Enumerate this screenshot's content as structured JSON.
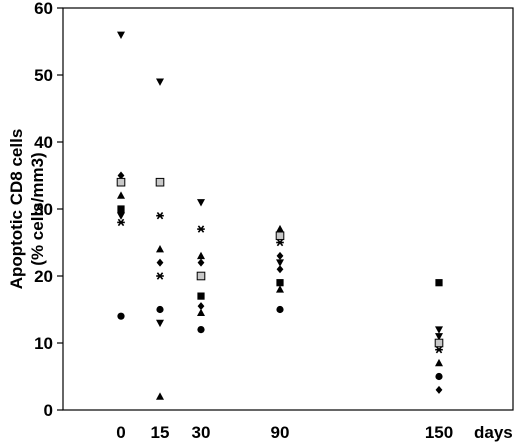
{
  "chart_data": {
    "type": "scatter",
    "title": "",
    "ylabel_line1": "Apoptotic CD8 cells",
    "ylabel_line2": "(% cells/mm3)",
    "xunit": "days",
    "ylim": [
      0,
      60
    ],
    "yticks": [
      0,
      10,
      20,
      30,
      40,
      50,
      60
    ],
    "xticks": [
      0,
      15,
      30,
      90,
      150
    ],
    "grid": false,
    "legend": "none",
    "colors": {
      "marker": "#000000",
      "square_fill": "#c8c8c8"
    },
    "points": [
      {
        "x": 0,
        "y": 56,
        "marker": "triangle-down"
      },
      {
        "x": 0,
        "y": 35,
        "marker": "diamond"
      },
      {
        "x": 0,
        "y": 34,
        "marker": "square-gray"
      },
      {
        "x": 0,
        "y": 32,
        "marker": "triangle-up"
      },
      {
        "x": 0,
        "y": 30,
        "marker": "square-black"
      },
      {
        "x": 0,
        "y": 29.5,
        "marker": "diamond"
      },
      {
        "x": 0,
        "y": 29,
        "marker": "triangle-down"
      },
      {
        "x": 0,
        "y": 28,
        "marker": "star"
      },
      {
        "x": 0,
        "y": 14,
        "marker": "circle"
      },
      {
        "x": 15,
        "y": 49,
        "marker": "triangle-down"
      },
      {
        "x": 15,
        "y": 34,
        "marker": "square-gray"
      },
      {
        "x": 15,
        "y": 29,
        "marker": "star"
      },
      {
        "x": 15,
        "y": 24,
        "marker": "triangle-up"
      },
      {
        "x": 15,
        "y": 22,
        "marker": "diamond"
      },
      {
        "x": 15,
        "y": 20,
        "marker": "star"
      },
      {
        "x": 15,
        "y": 15,
        "marker": "circle"
      },
      {
        "x": 15,
        "y": 13,
        "marker": "triangle-down"
      },
      {
        "x": 15,
        "y": 2,
        "marker": "triangle-up"
      },
      {
        "x": 30,
        "y": 31,
        "marker": "triangle-down"
      },
      {
        "x": 30,
        "y": 27,
        "marker": "star"
      },
      {
        "x": 30,
        "y": 23,
        "marker": "triangle-up"
      },
      {
        "x": 30,
        "y": 22,
        "marker": "diamond"
      },
      {
        "x": 30,
        "y": 20,
        "marker": "square-gray"
      },
      {
        "x": 30,
        "y": 17,
        "marker": "square-black"
      },
      {
        "x": 30,
        "y": 15.5,
        "marker": "diamond"
      },
      {
        "x": 30,
        "y": 14.5,
        "marker": "triangle-up"
      },
      {
        "x": 30,
        "y": 12,
        "marker": "circle"
      },
      {
        "x": 90,
        "y": 27,
        "marker": "triangle-up"
      },
      {
        "x": 90,
        "y": 26,
        "marker": "square-gray"
      },
      {
        "x": 90,
        "y": 25,
        "marker": "star"
      },
      {
        "x": 90,
        "y": 23,
        "marker": "diamond"
      },
      {
        "x": 90,
        "y": 22,
        "marker": "triangle-down"
      },
      {
        "x": 90,
        "y": 21,
        "marker": "diamond"
      },
      {
        "x": 90,
        "y": 19,
        "marker": "square-black"
      },
      {
        "x": 90,
        "y": 18,
        "marker": "triangle-up"
      },
      {
        "x": 90,
        "y": 15,
        "marker": "circle"
      },
      {
        "x": 150,
        "y": 19,
        "marker": "square-black"
      },
      {
        "x": 150,
        "y": 12,
        "marker": "triangle-down"
      },
      {
        "x": 150,
        "y": 11,
        "marker": "triangle-down"
      },
      {
        "x": 150,
        "y": 10,
        "marker": "square-gray"
      },
      {
        "x": 150,
        "y": 9,
        "marker": "star"
      },
      {
        "x": 150,
        "y": 7,
        "marker": "triangle-up"
      },
      {
        "x": 150,
        "y": 5,
        "marker": "circle"
      },
      {
        "x": 150,
        "y": 3,
        "marker": "diamond"
      }
    ]
  }
}
